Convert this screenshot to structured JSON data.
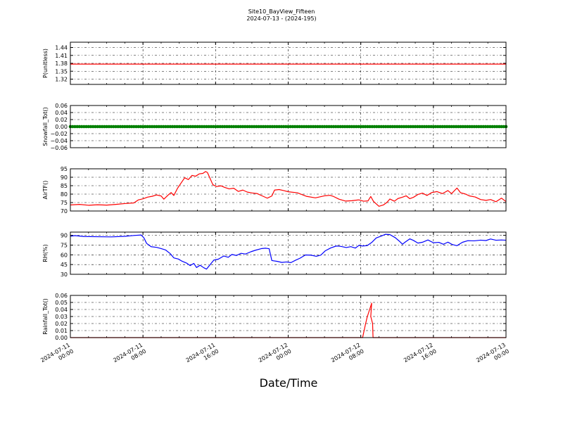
{
  "chart_data": {
    "type": "line",
    "title": "Site10_BayView_Fifteen",
    "subtitle": "2024-07-13 - (2024-195)",
    "xlabel": "Date/Time",
    "x_ticks": [
      {
        "line1": "2024-07-11",
        "line2": "00:00",
        "hour": 0
      },
      {
        "line1": "2024-07-11",
        "line2": "08:00",
        "hour": 8
      },
      {
        "line1": "2024-07-11",
        "line2": "16:00",
        "hour": 16
      },
      {
        "line1": "2024-07-12",
        "line2": "00:00",
        "hour": 24
      },
      {
        "line1": "2024-07-12",
        "line2": "08:00",
        "hour": 32
      },
      {
        "line1": "2024-07-12",
        "line2": "16:00",
        "hour": 40
      },
      {
        "line1": "2024-07-13",
        "line2": "00:00",
        "hour": 48
      }
    ],
    "xlim_hours": [
      0,
      48
    ],
    "grid": true,
    "panels": [
      {
        "ylabel": "P(unitless)",
        "ylim": [
          1.3,
          1.46
        ],
        "yticks": [
          "1.44",
          "1.41",
          "1.38",
          "1.35",
          "1.32"
        ],
        "ytick_values": [
          1.44,
          1.41,
          1.38,
          1.35,
          1.32
        ],
        "color": "#ff0000",
        "style": "line",
        "points": [
          [
            0,
            1.377
          ],
          [
            48,
            1.377
          ]
        ]
      },
      {
        "ylabel": "Snowfall_Tot()",
        "ylim": [
          -0.06,
          0.06
        ],
        "yticks": [
          "0.06",
          "0.04",
          "0.02",
          "0.00",
          "−0.02",
          "−0.04",
          "−0.06"
        ],
        "ytick_values": [
          0.06,
          0.04,
          0.02,
          0.0,
          -0.02,
          -0.04,
          -0.06
        ],
        "color": "#008000",
        "style": "markers",
        "points": [
          [
            0,
            0
          ],
          [
            48,
            0
          ]
        ]
      },
      {
        "ylabel": "AirTF()",
        "ylim": [
          70,
          95
        ],
        "yticks": [
          "95",
          "90",
          "85",
          "80",
          "75",
          "70"
        ],
        "ytick_values": [
          95,
          90,
          85,
          80,
          75,
          70
        ],
        "color": "#ff0000",
        "style": "line",
        "points": [
          [
            0,
            73.6
          ],
          [
            1,
            73.9
          ],
          [
            2,
            73.4
          ],
          [
            3,
            73.7
          ],
          [
            4,
            73.5
          ],
          [
            5,
            73.9
          ],
          [
            6,
            74.4
          ],
          [
            7,
            74.8
          ],
          [
            7.5,
            76.6
          ],
          [
            8,
            77.2
          ],
          [
            8.5,
            78.2
          ],
          [
            9,
            78.7
          ],
          [
            9.5,
            79.5
          ],
          [
            10,
            78.9
          ],
          [
            10.3,
            77.0
          ],
          [
            10.8,
            79.6
          ],
          [
            11.1,
            80.9
          ],
          [
            11.4,
            79.2
          ],
          [
            11.8,
            83.4
          ],
          [
            12.2,
            86.6
          ],
          [
            12.6,
            89.7
          ],
          [
            13,
            88.6
          ],
          [
            13.4,
            91.1
          ],
          [
            13.8,
            90.6
          ],
          [
            14.2,
            92.0
          ],
          [
            14.6,
            92.3
          ],
          [
            14.9,
            93.4
          ],
          [
            15.1,
            92.8
          ],
          [
            15.4,
            89.2
          ],
          [
            15.7,
            85.6
          ],
          [
            16.1,
            84.5
          ],
          [
            16.6,
            84.9
          ],
          [
            17,
            84.0
          ],
          [
            17.5,
            83.1
          ],
          [
            18,
            83.5
          ],
          [
            18.5,
            81.6
          ],
          [
            19,
            82.4
          ],
          [
            19.5,
            81.2
          ],
          [
            20,
            80.7
          ],
          [
            20.6,
            80.3
          ],
          [
            21.2,
            78.8
          ],
          [
            21.7,
            77.6
          ],
          [
            22.2,
            78.9
          ],
          [
            22.5,
            82.4
          ],
          [
            23,
            82.7
          ],
          [
            23.5,
            82.1
          ],
          [
            24,
            81.4
          ],
          [
            25,
            80.8
          ],
          [
            26,
            78.7
          ],
          [
            27,
            77.8
          ],
          [
            28,
            79.0
          ],
          [
            28.6,
            79.3
          ],
          [
            29,
            78.6
          ],
          [
            29.6,
            77.0
          ],
          [
            30.3,
            75.9
          ],
          [
            31,
            76.1
          ],
          [
            31.8,
            76.6
          ],
          [
            32.3,
            75.8
          ],
          [
            32.8,
            76.0
          ],
          [
            33.1,
            78.6
          ],
          [
            33.4,
            75.7
          ],
          [
            34,
            72.8
          ],
          [
            34.5,
            73.6
          ],
          [
            34.9,
            75.2
          ],
          [
            35.2,
            77.1
          ],
          [
            35.7,
            75.8
          ],
          [
            36.1,
            77.4
          ],
          [
            36.6,
            78.2
          ],
          [
            37,
            79.0
          ],
          [
            37.4,
            77.3
          ],
          [
            37.8,
            78.1
          ],
          [
            38.3,
            79.8
          ],
          [
            38.8,
            80.6
          ],
          [
            39.3,
            79.2
          ],
          [
            39.8,
            80.9
          ],
          [
            40.4,
            81.5
          ],
          [
            41,
            80.3
          ],
          [
            41.6,
            82.1
          ],
          [
            42,
            80.3
          ],
          [
            42.6,
            83.6
          ],
          [
            43,
            80.8
          ],
          [
            43.5,
            80.1
          ],
          [
            44,
            78.9
          ],
          [
            44.6,
            78.3
          ],
          [
            45.2,
            76.8
          ],
          [
            45.8,
            76.3
          ],
          [
            46.3,
            76.8
          ],
          [
            46.9,
            75.5
          ],
          [
            47.5,
            77.6
          ],
          [
            48,
            75.6
          ]
        ]
      },
      {
        "ylabel": "RH(%)",
        "ylim": [
          30,
          95
        ],
        "yticks": [
          "90",
          "75",
          "60",
          "45",
          "30"
        ],
        "ytick_values": [
          90,
          75,
          60,
          45,
          30
        ],
        "color": "#0000ff",
        "style": "line",
        "points": [
          [
            0,
            88.6
          ],
          [
            0.5,
            89.6
          ],
          [
            1.5,
            88.2
          ],
          [
            3,
            87.9
          ],
          [
            4.5,
            87.6
          ],
          [
            6,
            88.5
          ],
          [
            7,
            89.8
          ],
          [
            7.8,
            90.5
          ],
          [
            8.1,
            86.2
          ],
          [
            8.4,
            77.6
          ],
          [
            8.9,
            72.5
          ],
          [
            9.5,
            71.5
          ],
          [
            10,
            69.6
          ],
          [
            10.5,
            67.4
          ],
          [
            11,
            61.9
          ],
          [
            11.4,
            55.3
          ],
          [
            11.9,
            53.5
          ],
          [
            12.3,
            50.2
          ],
          [
            12.8,
            47.3
          ],
          [
            13.2,
            43.4
          ],
          [
            13.6,
            46.8
          ],
          [
            13.9,
            40.5
          ],
          [
            14.3,
            44.0
          ],
          [
            14.7,
            40.1
          ],
          [
            15,
            38.0
          ],
          [
            15.4,
            44.9
          ],
          [
            15.8,
            51.8
          ],
          [
            16.3,
            53.3
          ],
          [
            16.9,
            58.2
          ],
          [
            17.4,
            56.2
          ],
          [
            17.8,
            60.6
          ],
          [
            18.3,
            59.0
          ],
          [
            18.8,
            62.3
          ],
          [
            19.3,
            61.2
          ],
          [
            19.9,
            64.8
          ],
          [
            20.4,
            67.1
          ],
          [
            21.1,
            69.7
          ],
          [
            21.5,
            70.2
          ],
          [
            21.9,
            69.4
          ],
          [
            22.2,
            51.2
          ],
          [
            22.8,
            49.9
          ],
          [
            23.3,
            48.3
          ],
          [
            23.8,
            49.0
          ],
          [
            24.3,
            48.0
          ],
          [
            24.8,
            51.6
          ],
          [
            25.3,
            54.8
          ],
          [
            25.9,
            59.8
          ],
          [
            26.5,
            59.5
          ],
          [
            27.1,
            57.7
          ],
          [
            27.6,
            59.6
          ],
          [
            28.1,
            66.3
          ],
          [
            28.7,
            70.7
          ],
          [
            29.3,
            73.6
          ],
          [
            29.8,
            73.0
          ],
          [
            30.4,
            71.2
          ],
          [
            30.9,
            72.6
          ],
          [
            31.4,
            70.4
          ],
          [
            31.8,
            74.6
          ],
          [
            32.2,
            73.6
          ],
          [
            32.7,
            74.2
          ],
          [
            33.2,
            79.0
          ],
          [
            33.7,
            86.0
          ],
          [
            34.2,
            88.6
          ],
          [
            34.7,
            91.6
          ],
          [
            35.2,
            91.2
          ],
          [
            35.8,
            86.4
          ],
          [
            36.2,
            81.6
          ],
          [
            36.6,
            76.4
          ],
          [
            36.9,
            79.7
          ],
          [
            37.4,
            84.6
          ],
          [
            37.8,
            82.2
          ],
          [
            38.3,
            78.1
          ],
          [
            38.8,
            79.4
          ],
          [
            39.4,
            82.9
          ],
          [
            40,
            78.6
          ],
          [
            40.6,
            79.2
          ],
          [
            41.1,
            76.3
          ],
          [
            41.6,
            79.5
          ],
          [
            42.1,
            75.8
          ],
          [
            42.6,
            74.1
          ],
          [
            43.2,
            79.3
          ],
          [
            43.8,
            81.8
          ],
          [
            44.5,
            81.5
          ],
          [
            45.2,
            82.6
          ],
          [
            45.8,
            82.0
          ],
          [
            46.3,
            84.4
          ],
          [
            46.9,
            82.5
          ],
          [
            47.5,
            82.9
          ],
          [
            48,
            82.5
          ]
        ]
      },
      {
        "ylabel": "Rainfall_Tot()",
        "ylim": [
          0,
          0.06
        ],
        "yticks": [
          "0.06",
          "0.05",
          "0.04",
          "0.03",
          "0.02",
          "0.01",
          "0.00"
        ],
        "ytick_values": [
          0.06,
          0.05,
          0.04,
          0.03,
          0.02,
          0.01,
          0.0
        ],
        "color": "#ff0000",
        "style": "line",
        "points": [
          [
            0,
            0
          ],
          [
            32.2,
            0
          ],
          [
            32.5,
            0.018
          ],
          [
            32.7,
            0.029
          ],
          [
            33.2,
            0.049
          ],
          [
            33.1,
            0.03
          ],
          [
            33.3,
            0.02
          ],
          [
            33.35,
            0
          ],
          [
            48,
            0
          ]
        ]
      }
    ]
  }
}
